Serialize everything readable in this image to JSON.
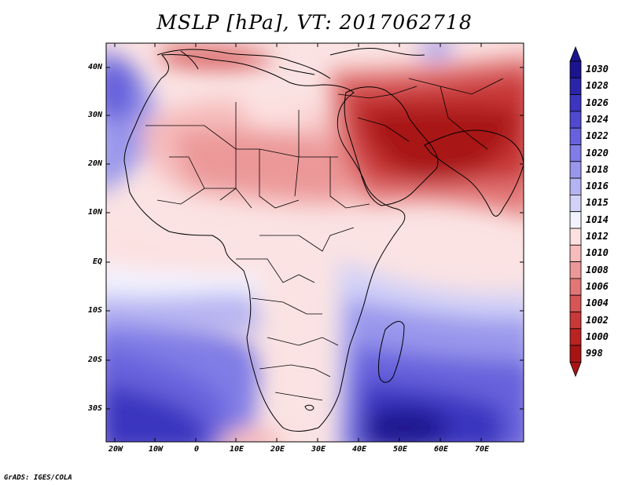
{
  "title": "MSLP [hPa], VT: 2017062718",
  "credit": "GrADS: IGES/COLA",
  "axes": {
    "lon_labels": [
      "20W",
      "10W",
      "0",
      "10E",
      "20E",
      "30E",
      "40E",
      "50E",
      "60E",
      "70E"
    ],
    "lat_labels": [
      "40N",
      "30N",
      "20N",
      "10N",
      "EQ",
      "10S",
      "20S",
      "30S"
    ]
  },
  "colorbar": {
    "labels": [
      "1030",
      "1028",
      "1026",
      "1024",
      "1022",
      "1020",
      "1018",
      "1016",
      "1015",
      "1014",
      "1012",
      "1010",
      "1008",
      "1006",
      "1004",
      "1002",
      "1000",
      "998"
    ],
    "colors": [
      "#1b148e",
      "#2a25a8",
      "#3b35c0",
      "#4f4ad0",
      "#6762dc",
      "#807de6",
      "#9997ec",
      "#b5b4f2",
      "#d2d1f8",
      "#f3f3fe",
      "#fde0e0",
      "#f6bcbc",
      "#ec9898",
      "#e27676",
      "#d65555",
      "#c93838",
      "#bb2222",
      "#a81414"
    ]
  },
  "map_features": {
    "region": "Africa, Middle East and surrounding oceans",
    "lon_range": [
      -22,
      80
    ],
    "lat_range": [
      -37,
      45
    ],
    "pressure_regions": [
      {
        "name": "arabian-low",
        "level": 998
      },
      {
        "name": "south-atlantic-high",
        "level": 1026
      },
      {
        "name": "indian-ocean-high",
        "level": 1030
      },
      {
        "name": "azores-high",
        "level": 1022
      },
      {
        "name": "saharan-trough",
        "level": 1006
      }
    ]
  }
}
